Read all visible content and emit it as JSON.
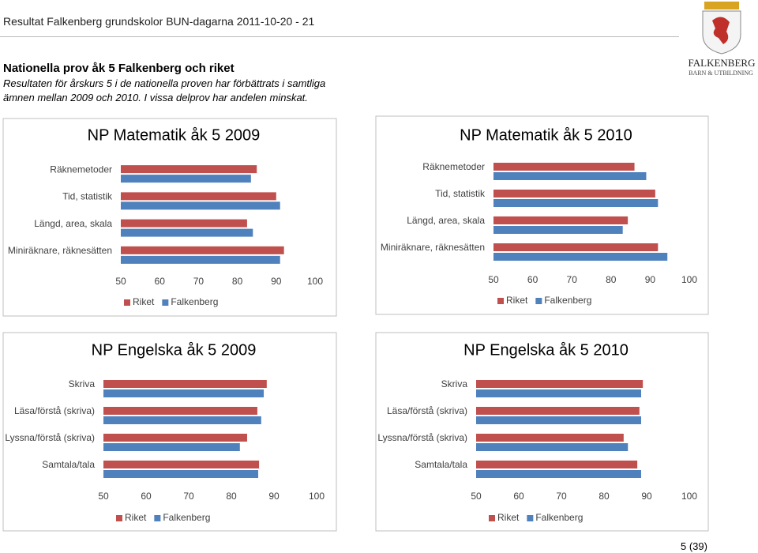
{
  "header": {
    "title": "Resultat Falkenberg grundskolor BUN-dagarna 2011-10-20 - 21"
  },
  "logo": {
    "name": "FALKENBERG",
    "subtitle": "BARN & UTBILDNING"
  },
  "section": {
    "title": "Nationella prov åk 5 Falkenberg och riket",
    "text": "Resultaten för årskurs 5 i de nationella proven har förbättrats i samtliga ämnen mellan 2009 och 2010. I vissa delprov har andelen minskat."
  },
  "chart_data": [
    {
      "type": "bar",
      "orientation": "horizontal",
      "title": "NP Matematik åk 5 2009",
      "categories": [
        "Räknemetoder",
        "Tid, statistik",
        "Längd, area, skala",
        "Miniräknare, räknesätten"
      ],
      "series": [
        {
          "name": "Riket",
          "color": "#c0504d",
          "values": [
            85,
            90,
            82.5,
            92
          ]
        },
        {
          "name": "Falkenberg",
          "color": "#4f81bd",
          "values": [
            83.5,
            91,
            84,
            91
          ]
        }
      ],
      "xlim": [
        50,
        100
      ],
      "xticks": [
        50,
        60,
        70,
        80,
        90,
        100
      ],
      "grid": false,
      "legend": "bottom"
    },
    {
      "type": "bar",
      "orientation": "horizontal",
      "title": "NP Matematik åk 5 2010",
      "categories": [
        "Räknemetoder",
        "Tid, statistik",
        "Längd, area, skala",
        "Miniräknare, räknesätten"
      ],
      "series": [
        {
          "name": "Riket",
          "color": "#c0504d",
          "values": [
            86,
            91.3,
            84.3,
            92
          ]
        },
        {
          "name": "Falkenberg",
          "color": "#4f81bd",
          "values": [
            89,
            92,
            83,
            94.4
          ]
        }
      ],
      "xlim": [
        50,
        100
      ],
      "xticks": [
        50,
        60,
        70,
        80,
        90,
        100
      ],
      "grid": false,
      "legend": "bottom"
    },
    {
      "type": "bar",
      "orientation": "horizontal",
      "title": "NP Engelska åk 5 2009",
      "categories": [
        "Skriva",
        "Läsa/förstå (skriva)",
        "Lyssna/förstå (skriva)",
        "Samtala/tala"
      ],
      "series": [
        {
          "name": "Riket",
          "color": "#c0504d",
          "values": [
            88.3,
            86.1,
            83.7,
            86.5
          ]
        },
        {
          "name": "Falkenberg",
          "color": "#4f81bd",
          "values": [
            87.6,
            87,
            82,
            86.3
          ]
        }
      ],
      "xlim": [
        50,
        100
      ],
      "xticks": [
        50,
        60,
        70,
        80,
        90,
        100
      ],
      "grid": false,
      "legend": "bottom"
    },
    {
      "type": "bar",
      "orientation": "horizontal",
      "title": "NP Engelska åk 5 2010",
      "categories": [
        "Skriva",
        "Läsa/förstå (skriva)",
        "Lyssna/förstå (skriva)",
        "Samtala/tala"
      ],
      "series": [
        {
          "name": "Riket",
          "color": "#c0504d",
          "values": [
            89.1,
            88.3,
            84.6,
            87.8
          ]
        },
        {
          "name": "Falkenberg",
          "color": "#4f81bd",
          "values": [
            88.7,
            88.7,
            85.6,
            88.7
          ]
        }
      ],
      "xlim": [
        50,
        100
      ],
      "xticks": [
        50,
        60,
        70,
        80,
        90,
        100
      ],
      "grid": false,
      "legend": "bottom"
    }
  ],
  "footer": {
    "page": "5 (39)"
  }
}
